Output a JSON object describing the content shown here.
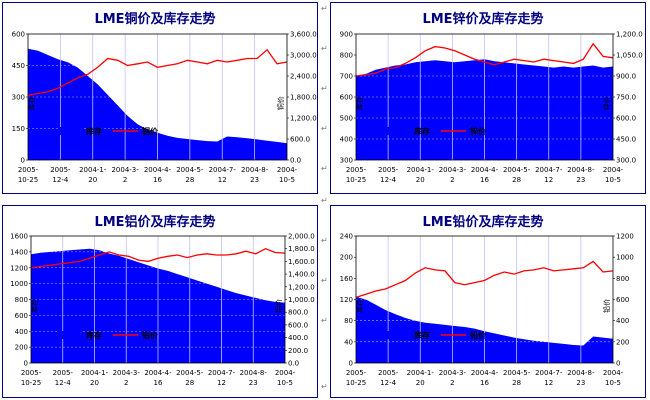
{
  "colors": {
    "stock": "#0000ff",
    "price": "#ff0000",
    "title": "#000080",
    "frame": "#000080"
  },
  "x_ticks": [
    [
      "2005-",
      "10-25"
    ],
    [
      "2005-",
      "12-4"
    ],
    [
      "2004-1-",
      "20"
    ],
    [
      "2004-3-",
      "2"
    ],
    [
      "2004-4-",
      "16"
    ],
    [
      "2004-5-",
      "28"
    ],
    [
      "2004-7-",
      "12"
    ],
    [
      "2004-8-",
      "23"
    ],
    [
      "2004-",
      "10-5"
    ]
  ],
  "margin_marks": [
    "↵",
    "↵",
    "↵",
    "↵",
    "↵",
    "↵",
    "↵",
    "↵",
    "↵",
    "↵"
  ],
  "chart_data": [
    {
      "type": "area+line",
      "title": "LME铜价及库存走势",
      "ylabel_left": "库存",
      "ylabel_right": "铜价",
      "left_ticks": [
        "0",
        "150",
        "300",
        "450",
        "600"
      ],
      "right_ticks": [
        "0.0",
        "600.0",
        "1,200.0",
        "1,800.0",
        "2,400.0",
        "3,000.0",
        "3,600.0"
      ],
      "ylim_left": [
        0,
        600
      ],
      "ylim_right": [
        0,
        3600
      ],
      "legend": [
        "库存",
        "铜价"
      ],
      "series": [
        {
          "name": "库存",
          "kind": "area",
          "values": [
            530,
            520,
            500,
            480,
            465,
            440,
            400,
            360,
            310,
            260,
            210,
            170,
            145,
            130,
            115,
            105,
            100,
            95,
            90,
            88,
            112,
            108,
            104,
            98,
            92,
            86,
            80
          ]
        },
        {
          "name": "铜价",
          "kind": "line",
          "values": [
            1850,
            1900,
            1950,
            2050,
            2200,
            2350,
            2450,
            2650,
            2900,
            2850,
            2700,
            2750,
            2800,
            2650,
            2700,
            2750,
            2850,
            2800,
            2750,
            2850,
            2800,
            2850,
            2900,
            2900,
            3150,
            2750,
            2800
          ]
        }
      ]
    },
    {
      "type": "area+line",
      "title": "LME锌价及库存走势",
      "ylabel_left": "库存",
      "ylabel_right": "锌价",
      "left_ticks": [
        "300",
        "400",
        "500",
        "600",
        "700",
        "800",
        "900"
      ],
      "right_ticks": [
        "300.0",
        "450.0",
        "600.0",
        "750.0",
        "900.0",
        "1,050.0",
        "1,200.0"
      ],
      "ylim_left": [
        300,
        900
      ],
      "ylim_right": [
        300,
        1200
      ],
      "legend": [
        "库存",
        "锌价"
      ],
      "series": [
        {
          "name": "库存",
          "kind": "area",
          "values": [
            700,
            710,
            730,
            740,
            750,
            755,
            765,
            770,
            775,
            770,
            765,
            770,
            775,
            780,
            770,
            765,
            760,
            755,
            750,
            745,
            740,
            745,
            740,
            745,
            750,
            740,
            745
          ]
        },
        {
          "name": "锌价",
          "kind": "line",
          "values": [
            900,
            910,
            920,
            950,
            960,
            990,
            1030,
            1080,
            1110,
            1100,
            1080,
            1050,
            1020,
            1000,
            980,
            1000,
            1020,
            1010,
            1000,
            1020,
            1010,
            1000,
            990,
            1020,
            1130,
            1040,
            1030
          ]
        }
      ]
    },
    {
      "type": "area+line",
      "title": "LME铝价及库存走势",
      "ylabel_left": "库存",
      "ylabel_right": "铝价",
      "left_ticks": [
        "0",
        "200",
        "400",
        "600",
        "800",
        "1000",
        "1200",
        "1400",
        "1600"
      ],
      "right_ticks": [
        "0.0",
        "200.0",
        "400.0",
        "600.0",
        "800.0",
        "1,000.0",
        "1,200.0",
        "1,400.0",
        "1,600.0",
        "1,800.0",
        "2,000.0"
      ],
      "ylim_left": [
        0,
        1600
      ],
      "ylim_right": [
        0,
        2000
      ],
      "legend": [
        "库存",
        "铝价"
      ],
      "series": [
        {
          "name": "库存",
          "kind": "area",
          "values": [
            1370,
            1390,
            1400,
            1410,
            1420,
            1430,
            1440,
            1420,
            1380,
            1350,
            1310,
            1270,
            1230,
            1190,
            1160,
            1120,
            1080,
            1040,
            1000,
            960,
            920,
            880,
            850,
            820,
            790,
            770,
            760
          ]
        },
        {
          "name": "铝价",
          "kind": "line",
          "values": [
            1500,
            1520,
            1540,
            1560,
            1580,
            1600,
            1650,
            1700,
            1750,
            1700,
            1680,
            1620,
            1600,
            1650,
            1680,
            1700,
            1660,
            1700,
            1720,
            1700,
            1700,
            1720,
            1760,
            1720,
            1800,
            1740,
            1730
          ]
        }
      ]
    },
    {
      "type": "area+line",
      "title": "LME铅价及库存走势",
      "ylabel_left": "库存",
      "ylabel_right": "铅价",
      "left_ticks": [
        "0",
        "40",
        "80",
        "120",
        "160",
        "200",
        "240"
      ],
      "right_ticks": [
        "0",
        "200",
        "400",
        "600",
        "800",
        "1000",
        "1200"
      ],
      "ylim_left": [
        0,
        240
      ],
      "ylim_right": [
        0,
        1200
      ],
      "legend": [
        "库存",
        "铅价"
      ],
      "series": [
        {
          "name": "库存",
          "kind": "area",
          "values": [
            125,
            120,
            110,
            100,
            92,
            85,
            80,
            76,
            74,
            72,
            70,
            68,
            65,
            60,
            56,
            52,
            48,
            45,
            42,
            40,
            38,
            36,
            34,
            33,
            50,
            48,
            46
          ]
        },
        {
          "name": "铅价",
          "kind": "line",
          "values": [
            620,
            650,
            680,
            700,
            740,
            780,
            850,
            900,
            880,
            870,
            760,
            740,
            760,
            780,
            830,
            860,
            840,
            870,
            880,
            900,
            870,
            880,
            890,
            900,
            960,
            860,
            870
          ]
        }
      ]
    }
  ]
}
